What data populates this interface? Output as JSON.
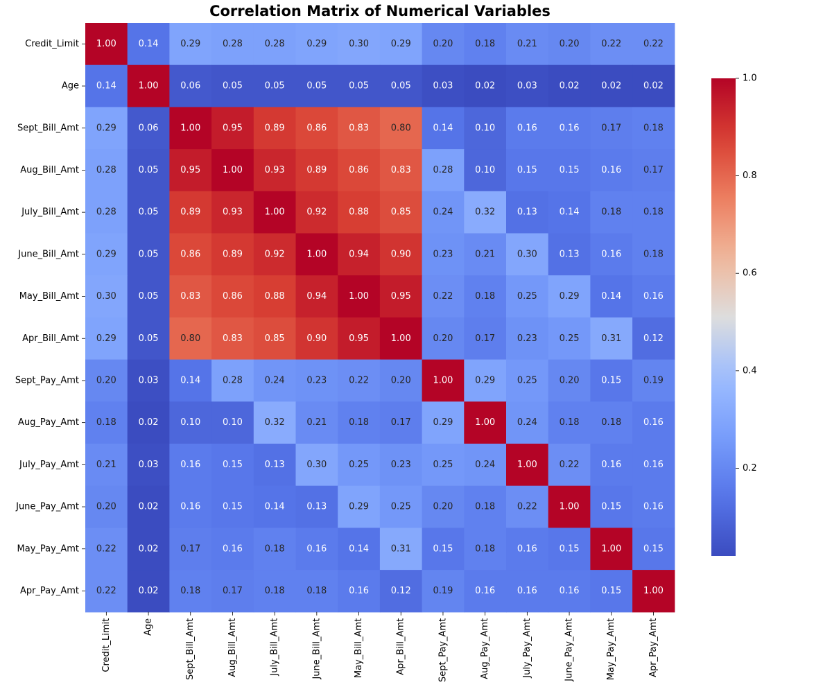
{
  "chart_data": {
    "type": "heatmap",
    "title": "Correlation Matrix of Numerical Variables",
    "xlabel": "",
    "ylabel": "",
    "colormap": "coolwarm",
    "value_format": "2 decimals",
    "labels": [
      "Credit_Limit",
      "Age",
      "Sept_Bill_Amt",
      "Aug_Bill_Amt",
      "July_Bill_Amt",
      "June_Bill_Amt",
      "May_Bill_Amt",
      "Apr_Bill_Amt",
      "Sept_Pay_Amt",
      "Aug_Pay_Amt",
      "July_Pay_Amt",
      "June_Pay_Amt",
      "May_Pay_Amt",
      "Apr_Pay_Amt"
    ],
    "matrix": [
      [
        1.0,
        0.14,
        0.29,
        0.28,
        0.28,
        0.29,
        0.3,
        0.29,
        0.2,
        0.18,
        0.21,
        0.2,
        0.22,
        0.22
      ],
      [
        0.14,
        1.0,
        0.06,
        0.05,
        0.05,
        0.05,
        0.05,
        0.05,
        0.03,
        0.02,
        0.03,
        0.02,
        0.02,
        0.02
      ],
      [
        0.29,
        0.06,
        1.0,
        0.95,
        0.89,
        0.86,
        0.83,
        0.8,
        0.14,
        0.1,
        0.16,
        0.16,
        0.17,
        0.18
      ],
      [
        0.28,
        0.05,
        0.95,
        1.0,
        0.93,
        0.89,
        0.86,
        0.83,
        0.28,
        0.1,
        0.15,
        0.15,
        0.16,
        0.17
      ],
      [
        0.28,
        0.05,
        0.89,
        0.93,
        1.0,
        0.92,
        0.88,
        0.85,
        0.24,
        0.32,
        0.13,
        0.14,
        0.18,
        0.18
      ],
      [
        0.29,
        0.05,
        0.86,
        0.89,
        0.92,
        1.0,
        0.94,
        0.9,
        0.23,
        0.21,
        0.3,
        0.13,
        0.16,
        0.18
      ],
      [
        0.3,
        0.05,
        0.83,
        0.86,
        0.88,
        0.94,
        1.0,
        0.95,
        0.22,
        0.18,
        0.25,
        0.29,
        0.14,
        0.16
      ],
      [
        0.29,
        0.05,
        0.8,
        0.83,
        0.85,
        0.9,
        0.95,
        1.0,
        0.2,
        0.17,
        0.23,
        0.25,
        0.31,
        0.12
      ],
      [
        0.2,
        0.03,
        0.14,
        0.28,
        0.24,
        0.23,
        0.22,
        0.2,
        1.0,
        0.29,
        0.25,
        0.2,
        0.15,
        0.19
      ],
      [
        0.18,
        0.02,
        0.1,
        0.1,
        0.32,
        0.21,
        0.18,
        0.17,
        0.29,
        1.0,
        0.24,
        0.18,
        0.18,
        0.16
      ],
      [
        0.21,
        0.03,
        0.16,
        0.15,
        0.13,
        0.3,
        0.25,
        0.23,
        0.25,
        0.24,
        1.0,
        0.22,
        0.16,
        0.16
      ],
      [
        0.2,
        0.02,
        0.16,
        0.15,
        0.14,
        0.13,
        0.29,
        0.25,
        0.2,
        0.18,
        0.22,
        1.0,
        0.15,
        0.16
      ],
      [
        0.22,
        0.02,
        0.17,
        0.16,
        0.18,
        0.16,
        0.14,
        0.31,
        0.15,
        0.18,
        0.16,
        0.15,
        1.0,
        0.15
      ],
      [
        0.22,
        0.02,
        0.18,
        0.17,
        0.18,
        0.18,
        0.16,
        0.12,
        0.19,
        0.16,
        0.16,
        0.16,
        0.15,
        1.0
      ]
    ],
    "vmin": 0.02,
    "vmax": 1.0,
    "colorbar_ticks": [
      0.2,
      0.4,
      0.6,
      0.8,
      1.0
    ],
    "colorbar_tick_labels": [
      "0.2",
      "0.4",
      "0.6",
      "0.8",
      "1.0"
    ],
    "colorbar_placement": "right"
  }
}
